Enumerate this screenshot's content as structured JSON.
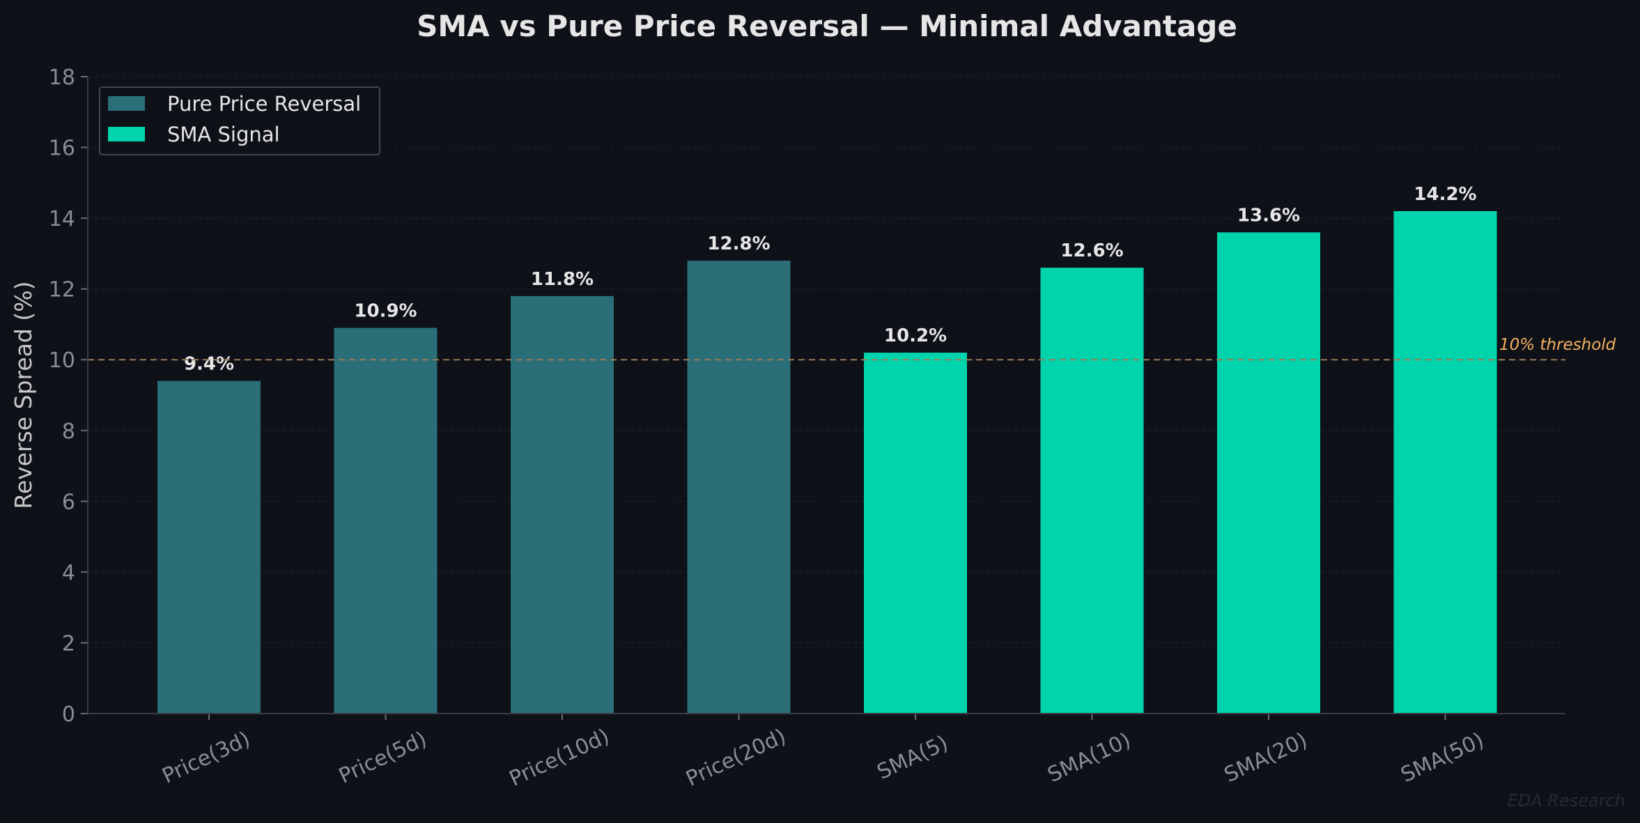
{
  "chart_data": {
    "type": "bar",
    "title": "SMA vs Pure Price Reversal — Minimal Advantage",
    "xlabel": "",
    "ylabel": "Reverse Spread (%)",
    "ylim": [
      0,
      18
    ],
    "yticks": [
      0,
      2,
      4,
      6,
      8,
      10,
      12,
      14,
      16,
      18
    ],
    "grid": true,
    "legend_position": "top-left",
    "categories": [
      "Price(3d)",
      "Price(5d)",
      "Price(10d)",
      "Price(20d)",
      "SMA(5)",
      "SMA(10)",
      "SMA(20)",
      "SMA(50)"
    ],
    "values": [
      9.4,
      10.9,
      11.8,
      12.8,
      10.2,
      12.6,
      13.6,
      14.2
    ],
    "data_labels": [
      "9.4%",
      "10.9%",
      "11.8%",
      "12.8%",
      "10.2%",
      "12.6%",
      "13.6%",
      "14.2%"
    ],
    "series": [
      {
        "name": "Pure Price Reversal",
        "color": "#2a6e78",
        "categories": [
          "Price(3d)",
          "Price(5d)",
          "Price(10d)",
          "Price(20d)"
        ]
      },
      {
        "name": "SMA Signal",
        "color": "#00d4ad",
        "categories": [
          "SMA(5)",
          "SMA(10)",
          "SMA(20)",
          "SMA(50)"
        ]
      }
    ],
    "reference_line": {
      "value": 10,
      "label": "10% threshold",
      "color": "#f5b060",
      "style": "dashed"
    },
    "watermark": "EDA Research"
  },
  "colors": {
    "background": "#0e1118",
    "axis": "#3a3d45",
    "text": "#e6e6e6"
  }
}
